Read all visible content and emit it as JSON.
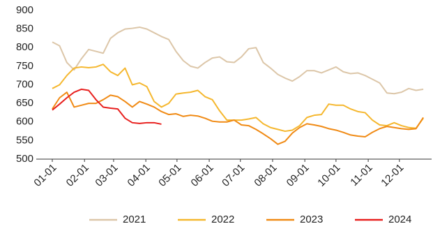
{
  "chart_data": {
    "type": "line",
    "x": [
      0,
      7,
      14,
      21,
      28,
      35,
      42,
      49,
      56,
      63,
      70,
      77,
      84,
      91,
      98,
      105,
      112,
      119,
      126,
      133,
      140,
      147,
      154,
      161,
      168,
      175,
      182,
      189,
      196,
      203,
      210,
      217,
      224,
      231,
      238,
      245,
      252,
      259,
      266,
      273,
      280,
      287,
      294,
      301,
      308,
      315,
      322,
      329,
      336,
      343,
      350,
      357
    ],
    "xlim": [
      0,
      365
    ],
    "xticks": [
      {
        "value": 0,
        "label": "01-01"
      },
      {
        "value": 31,
        "label": "02-01"
      },
      {
        "value": 59,
        "label": "03-01"
      },
      {
        "value": 90,
        "label": "04-01"
      },
      {
        "value": 120,
        "label": "05-01"
      },
      {
        "value": 151,
        "label": "06-01"
      },
      {
        "value": 181,
        "label": "07-01"
      },
      {
        "value": 212,
        "label": "08-01"
      },
      {
        "value": 243,
        "label": "09-01"
      },
      {
        "value": 273,
        "label": "10-01"
      },
      {
        "value": 304,
        "label": "11-01"
      },
      {
        "value": 334,
        "label": "12-01"
      }
    ],
    "ylim": [
      500,
      900
    ],
    "yticks": [
      500,
      550,
      600,
      650,
      700,
      750,
      800,
      850,
      900
    ],
    "series": [
      {
        "name": "2021",
        "color": "#dcc6a8",
        "values": [
          815,
          805,
          760,
          740,
          770,
          795,
          790,
          785,
          825,
          840,
          850,
          852,
          855,
          850,
          840,
          830,
          822,
          790,
          765,
          750,
          745,
          760,
          772,
          775,
          762,
          760,
          775,
          797,
          800,
          760,
          745,
          728,
          718,
          710,
          722,
          738,
          738,
          732,
          740,
          748,
          735,
          730,
          732,
          725,
          715,
          705,
          678,
          676,
          680,
          690,
          685,
          688
        ]
      },
      {
        "name": "2022",
        "color": "#f5b72e",
        "values": [
          690,
          700,
          725,
          745,
          748,
          746,
          748,
          755,
          735,
          725,
          745,
          700,
          705,
          695,
          655,
          640,
          650,
          675,
          678,
          680,
          685,
          668,
          660,
          630,
          605,
          605,
          605,
          608,
          612,
          595,
          585,
          580,
          575,
          578,
          590,
          612,
          618,
          620,
          648,
          645,
          645,
          635,
          628,
          625,
          605,
          592,
          590,
          598,
          590,
          585,
          583,
          610
        ]
      },
      {
        "name": "2023",
        "color": "#f08a14",
        "values": [
          635,
          665,
          680,
          640,
          645,
          650,
          650,
          660,
          672,
          668,
          655,
          640,
          655,
          648,
          640,
          628,
          620,
          622,
          615,
          618,
          616,
          610,
          602,
          600,
          600,
          605,
          592,
          590,
          580,
          568,
          555,
          540,
          548,
          570,
          585,
          595,
          592,
          588,
          582,
          578,
          572,
          565,
          562,
          560,
          572,
          582,
          588,
          585,
          582,
          580,
          582,
          612
        ]
      },
      {
        "name": "2024",
        "color": "#e8201e",
        "values": [
          632,
          648,
          665,
          680,
          688,
          685,
          660,
          640,
          637,
          635,
          610,
          598,
          596,
          598,
          598,
          594,
          null,
          null,
          null,
          null,
          null,
          null,
          null,
          null,
          null,
          null,
          null,
          null,
          null,
          null,
          null,
          null,
          null,
          null,
          null,
          null,
          null,
          null,
          null,
          null,
          null,
          null,
          null,
          null,
          null,
          null,
          null,
          null,
          null,
          null,
          null,
          null
        ]
      }
    ]
  }
}
